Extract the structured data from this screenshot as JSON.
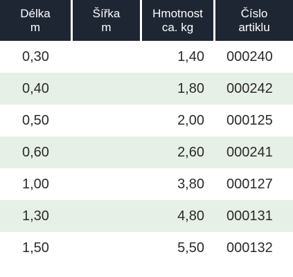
{
  "headers": [
    {
      "line1": "Délka",
      "line2": "m"
    },
    {
      "line1": "Šířka",
      "line2": "m"
    },
    {
      "line1": "Hmotnost",
      "line2": "ca. kg"
    },
    {
      "line1": "Číslo",
      "line2": "artiklu"
    }
  ],
  "rows": [
    {
      "delka": "0,30",
      "sirka": "",
      "hmotnost": "1,40",
      "cislo": "000240"
    },
    {
      "delka": "0,40",
      "sirka": "",
      "hmotnost": "1,80",
      "cislo": "000242"
    },
    {
      "delka": "0,50",
      "sirka": "",
      "hmotnost": "2,00",
      "cislo": "000125"
    },
    {
      "delka": "0,60",
      "sirka": "",
      "hmotnost": "2,60",
      "cislo": "000241"
    },
    {
      "delka": "1,00",
      "sirka": "",
      "hmotnost": "3,80",
      "cislo": "000127"
    },
    {
      "delka": "1,30",
      "sirka": "",
      "hmotnost": "4,80",
      "cislo": "000131"
    },
    {
      "delka": "1,50",
      "sirka": "",
      "hmotnost": "5,50",
      "cislo": "000132"
    }
  ],
  "colors": {
    "header_bg": "#1f2633",
    "header_text": "#ffffff",
    "stripe": "#e6f0e6"
  }
}
